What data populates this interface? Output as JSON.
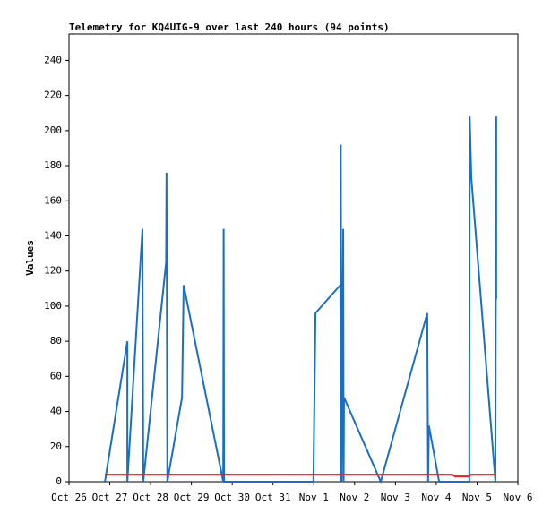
{
  "chart_data": {
    "type": "line",
    "title": "Telemetry for KQ4UIG-9 over last 240 hours (94 points)",
    "y_label": "Values",
    "xlim": [
      0,
      11
    ],
    "xticks": [
      {
        "value": 0,
        "label": "Oct 26"
      },
      {
        "value": 1,
        "label": "Oct 27"
      },
      {
        "value": 2,
        "label": "Oct 28"
      },
      {
        "value": 3,
        "label": "Oct 29"
      },
      {
        "value": 4,
        "label": "Oct 30"
      },
      {
        "value": 5,
        "label": "Oct 31"
      },
      {
        "value": 6,
        "label": "Nov 1"
      },
      {
        "value": 7,
        "label": "Nov 2"
      },
      {
        "value": 8,
        "label": "Nov 3"
      },
      {
        "value": 9,
        "label": "Nov 4"
      },
      {
        "value": 10,
        "label": "Nov 5"
      },
      {
        "value": 11,
        "label": "Nov 6"
      }
    ],
    "ylim": [
      0,
      255
    ],
    "yticks": [
      0,
      20,
      40,
      60,
      80,
      100,
      120,
      140,
      160,
      180,
      200,
      220,
      240
    ],
    "series": [
      {
        "color": "#1a6fc4",
        "x": [
          0.88,
          1.43,
          1.43,
          1.8,
          1.82,
          2.38,
          2.39,
          2.41,
          2.77,
          2.81,
          3.78,
          3.79,
          3.8,
          5.99,
          6.04,
          6.65,
          6.66,
          6.66,
          6.68,
          6.72,
          6.73,
          6.74,
          7.64,
          8.78,
          8.8,
          8.82,
          9.07,
          9.81,
          9.82,
          9.86,
          10.45,
          10.47,
          10.47
        ],
        "values": [
          0,
          80,
          0,
          144,
          0,
          125,
          176,
          0,
          48,
          112,
          0,
          144,
          0,
          0,
          96,
          112,
          0,
          192,
          0,
          144,
          0,
          48,
          0,
          96,
          0,
          32,
          0,
          0,
          208,
          173,
          0,
          208,
          104
        ]
      },
      {
        "color": "#e02020",
        "x": [
          0.88,
          9.4,
          9.46,
          9.8,
          9.85,
          10.47
        ],
        "values": [
          4,
          4,
          3,
          3,
          4,
          4
        ]
      }
    ]
  }
}
